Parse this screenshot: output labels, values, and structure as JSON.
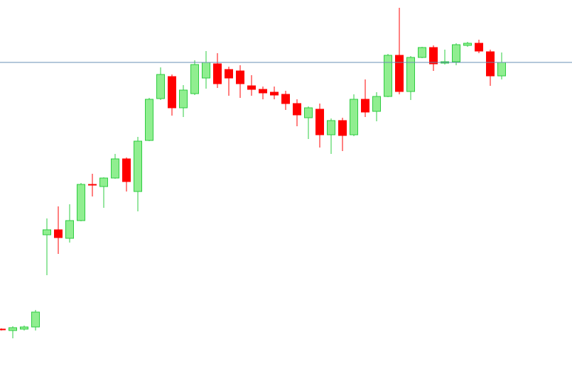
{
  "chart_data": {
    "type": "candlestick",
    "open": [
      76,
      74,
      76,
      79,
      209,
      216,
      204,
      229,
      280,
      277,
      289,
      316,
      270,
      342,
      401,
      432,
      388,
      408,
      430,
      450,
      442,
      440,
      419,
      414,
      410,
      407,
      394,
      374,
      386,
      350,
      370,
      350,
      400,
      383,
      404,
      462,
      411,
      459,
      473,
      451,
      453,
      476,
      479,
      467,
      433
    ],
    "high": [
      77,
      80,
      81,
      103,
      232,
      249,
      252,
      282,
      295,
      290,
      323,
      318,
      347,
      402,
      445,
      435,
      420,
      455,
      468,
      465,
      446,
      448,
      434,
      418,
      418,
      412,
      400,
      390,
      394,
      373,
      374,
      407,
      428,
      410,
      464,
      529,
      461,
      474,
      476,
      470,
      479,
      481,
      484,
      470,
      466
    ],
    "low": [
      74,
      63,
      74,
      74,
      152,
      182,
      198,
      228,
      263,
      247,
      288,
      270,
      242,
      341,
      399,
      377,
      375,
      406,
      415,
      416,
      405,
      402,
      405,
      400,
      400,
      385,
      362,
      344,
      332,
      323,
      327,
      348,
      375,
      369,
      403,
      407,
      399,
      458,
      440,
      449,
      448,
      474,
      465,
      419,
      428
    ],
    "close": [
      75,
      78,
      79,
      100,
      216,
      205,
      229,
      280,
      279,
      289,
      316,
      284,
      341,
      400,
      435,
      388,
      413,
      449,
      452,
      422,
      430,
      422,
      414,
      409,
      406,
      394,
      378,
      388,
      350,
      370,
      349,
      400,
      382,
      404,
      462,
      411,
      459,
      473,
      450,
      453,
      477,
      479,
      468,
      433,
      452
    ],
    "up_color": "#90ee90",
    "up_edge": "#2ecc40",
    "down_color": "#ff0000",
    "hline": 452,
    "hline_color": "#6a8fb5",
    "ylim": [
      0,
      540
    ]
  }
}
